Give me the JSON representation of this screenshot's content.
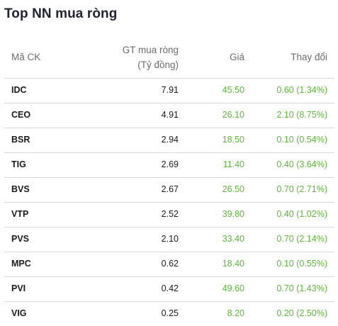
{
  "title": "Top NN mua ròng",
  "columns": {
    "code": "Mã CK",
    "gt_line1": "GT mua ròng",
    "gt_line2": "(Tỷ đồng)",
    "price": "Giá",
    "change": "Thay đổi"
  },
  "rows": [
    {
      "code": "IDC",
      "gt": "7.91",
      "price": "45.50",
      "change": "0.60 (1.34%)"
    },
    {
      "code": "CEO",
      "gt": "4.91",
      "price": "26.10",
      "change": "2.10 (8.75%)"
    },
    {
      "code": "BSR",
      "gt": "2.94",
      "price": "18.50",
      "change": "0.10 (0.54%)"
    },
    {
      "code": "TIG",
      "gt": "2.69",
      "price": "11.40",
      "change": "0.40 (3.64%)"
    },
    {
      "code": "BVS",
      "gt": "2.67",
      "price": "26.50",
      "change": "0.70 (2.71%)"
    },
    {
      "code": "VTP",
      "gt": "2.52",
      "price": "39.80",
      "change": "0.40 (1.02%)"
    },
    {
      "code": "PVS",
      "gt": "2.10",
      "price": "33.40",
      "change": "0.70 (2.14%)"
    },
    {
      "code": "MPC",
      "gt": "0.62",
      "price": "18.40",
      "change": "0.10 (0.55%)"
    },
    {
      "code": "PVI",
      "gt": "0.42",
      "price": "49.60",
      "change": "0.70 (1.43%)"
    },
    {
      "code": "VIG",
      "gt": "0.25",
      "price": "8.20",
      "change": "0.20 (2.50%)"
    }
  ],
  "colors": {
    "up": "#5cb83a",
    "text": "#1a1a1a",
    "header": "#6b6b6b"
  }
}
